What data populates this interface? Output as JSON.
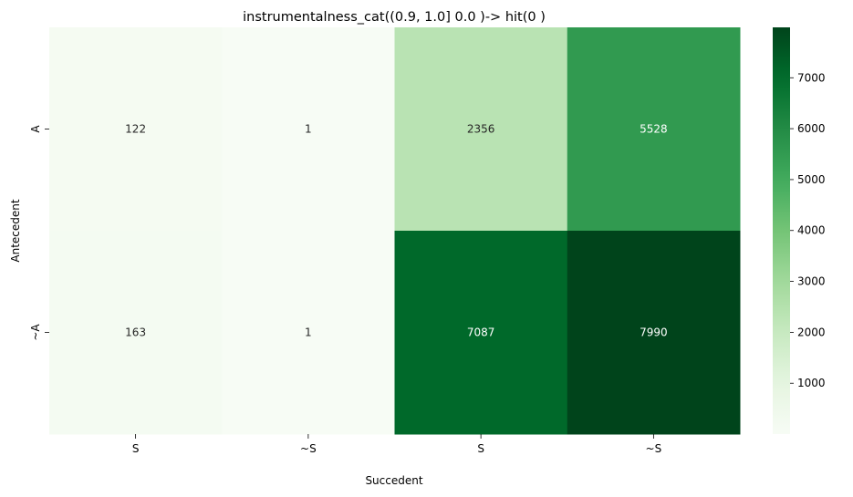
{
  "chart_data": {
    "type": "heatmap",
    "title": "instrumentalness_cat((0.9, 1.0] 0.0 )-> hit(0 )",
    "xlabel": "Succedent",
    "ylabel": "Antecedent",
    "x_categories": [
      "S",
      "~S",
      "S",
      "~S"
    ],
    "y_categories": [
      "A",
      "~A"
    ],
    "values": [
      [
        122,
        1,
        2356,
        5528
      ],
      [
        163,
        1,
        7087,
        7990
      ]
    ],
    "colormap": "Greens",
    "colorbar": {
      "ticks": [
        1000,
        2000,
        3000,
        4000,
        5000,
        6000,
        7000
      ],
      "vmin": 1,
      "vmax": 7990
    },
    "colors": {
      "text_dark": "#262626",
      "text_light": "#ffffff"
    }
  }
}
